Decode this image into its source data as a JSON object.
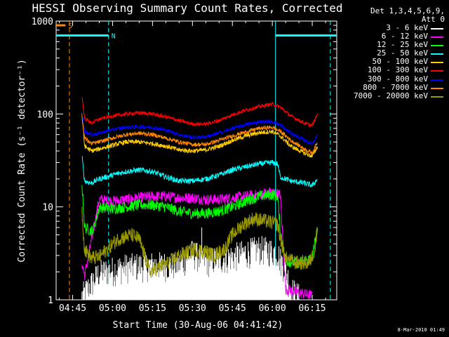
{
  "chart_data": {
    "type": "line",
    "title": "HESSI Observing Summary Count Rates, Corrected",
    "xlabel": "Start Time (30-Aug-06 04:41:42)",
    "ylabel": "Corrected Count Rate (s⁻¹ detector⁻¹)",
    "yscale": "log",
    "ylim": [
      1,
      1000
    ],
    "xlim_minutes": [
      -6.2,
      99.2
    ],
    "xticks": [
      {
        "label": "04:45",
        "min": 0
      },
      {
        "label": "05:00",
        "min": 15
      },
      {
        "label": "05:15",
        "min": 30
      },
      {
        "label": "05:30",
        "min": 45
      },
      {
        "label": "05:45",
        "min": 60
      },
      {
        "label": "06:00",
        "min": 75
      },
      {
        "label": "06:15",
        "min": 90
      }
    ],
    "yticks": [
      {
        "label": "1",
        "value": 1
      },
      {
        "label": "10",
        "value": 10
      },
      {
        "label": "100",
        "value": 100
      },
      {
        "label": "1000",
        "value": 1000
      }
    ],
    "legend_header": [
      "Det 1,3,4,5,6,9,",
      "Att 0"
    ],
    "legend_position": "right",
    "series": [
      {
        "name": "3 - 6 keV",
        "color": "#ffffff",
        "points": [
          [
            3.5,
            1
          ],
          [
            10,
            1.8
          ],
          [
            20,
            2.1
          ],
          [
            30,
            2.2
          ],
          [
            40,
            2.2
          ],
          [
            45,
            3.0
          ],
          [
            50,
            2.4
          ],
          [
            60,
            2.7
          ],
          [
            70,
            3.3
          ],
          [
            77,
            3.0
          ],
          [
            78,
            2.5
          ],
          [
            80,
            2.0
          ],
          [
            82,
            1.2
          ],
          [
            85,
            1.0
          ]
        ]
      },
      {
        "name": "6 - 12 keV",
        "color": "#ff00ff",
        "points": [
          [
            3.5,
            2.5
          ],
          [
            4.5,
            1.8
          ],
          [
            10,
            12
          ],
          [
            15,
            11.5
          ],
          [
            20,
            12
          ],
          [
            25,
            12.5
          ],
          [
            30,
            13
          ],
          [
            35,
            13
          ],
          [
            40,
            12.5
          ],
          [
            45,
            12.5
          ],
          [
            50,
            12
          ],
          [
            55,
            12
          ],
          [
            60,
            12.5
          ],
          [
            65,
            13
          ],
          [
            70,
            13.5
          ],
          [
            75,
            14.5
          ],
          [
            78,
            13.5
          ],
          [
            80,
            1.3
          ],
          [
            90,
            1.1
          ]
        ]
      },
      {
        "name": "12 - 25 keV",
        "color": "#00ff00",
        "points": [
          [
            3.5,
            18
          ],
          [
            4.5,
            6
          ],
          [
            7,
            5.5
          ],
          [
            8,
            6
          ],
          [
            10,
            10
          ],
          [
            15,
            9.5
          ],
          [
            20,
            10
          ],
          [
            25,
            10.5
          ],
          [
            30,
            10.5
          ],
          [
            35,
            10
          ],
          [
            40,
            9
          ],
          [
            45,
            8.5
          ],
          [
            50,
            8.5
          ],
          [
            55,
            9
          ],
          [
            60,
            10
          ],
          [
            65,
            11.5
          ],
          [
            70,
            13
          ],
          [
            75,
            13.5
          ],
          [
            77,
            13
          ],
          [
            78,
            5.5
          ],
          [
            80,
            2.6
          ],
          [
            85,
            2.5
          ],
          [
            90,
            2.8
          ],
          [
            92,
            6
          ]
        ]
      },
      {
        "name": "25 - 50 keV",
        "color": "#00ffff",
        "points": [
          [
            3.5,
            35
          ],
          [
            4.5,
            19
          ],
          [
            7,
            18
          ],
          [
            10,
            20
          ],
          [
            15,
            22
          ],
          [
            20,
            24
          ],
          [
            25,
            25
          ],
          [
            30,
            24
          ],
          [
            35,
            21
          ],
          [
            40,
            19
          ],
          [
            45,
            19
          ],
          [
            50,
            20
          ],
          [
            55,
            22
          ],
          [
            60,
            25
          ],
          [
            65,
            27
          ],
          [
            70,
            29
          ],
          [
            75,
            30
          ],
          [
            77,
            29
          ],
          [
            78,
            21
          ],
          [
            82,
            19
          ],
          [
            87,
            18
          ],
          [
            90,
            17
          ],
          [
            92,
            20
          ]
        ]
      },
      {
        "name": "50 - 100 keV",
        "color": "#ffcc00",
        "points": [
          [
            3.5,
            100
          ],
          [
            4.5,
            45
          ],
          [
            7,
            40
          ],
          [
            10,
            42
          ],
          [
            15,
            46
          ],
          [
            20,
            50
          ],
          [
            25,
            50
          ],
          [
            30,
            48
          ],
          [
            35,
            45
          ],
          [
            40,
            41
          ],
          [
            45,
            40
          ],
          [
            50,
            41
          ],
          [
            55,
            45
          ],
          [
            60,
            52
          ],
          [
            65,
            58
          ],
          [
            70,
            63
          ],
          [
            75,
            65
          ],
          [
            78,
            58
          ],
          [
            82,
            45
          ],
          [
            87,
            38
          ],
          [
            90,
            35
          ],
          [
            92,
            45
          ]
        ]
      },
      {
        "name": "100 - 300 keV",
        "color": "#ff0000",
        "points": [
          [
            3.5,
            155
          ],
          [
            4.5,
            90
          ],
          [
            7,
            80
          ],
          [
            10,
            88
          ],
          [
            15,
            95
          ],
          [
            20,
            100
          ],
          [
            25,
            103
          ],
          [
            30,
            100
          ],
          [
            35,
            93
          ],
          [
            40,
            85
          ],
          [
            45,
            78
          ],
          [
            50,
            78
          ],
          [
            55,
            85
          ],
          [
            60,
            98
          ],
          [
            65,
            110
          ],
          [
            70,
            120
          ],
          [
            75,
            128
          ],
          [
            78,
            118
          ],
          [
            82,
            95
          ],
          [
            87,
            80
          ],
          [
            90,
            75
          ],
          [
            92,
            100
          ]
        ]
      },
      {
        "name": "300 - 800 keV",
        "color": "#0000ff",
        "points": [
          [
            3.5,
            110
          ],
          [
            4.5,
            65
          ],
          [
            7,
            60
          ],
          [
            10,
            62
          ],
          [
            15,
            68
          ],
          [
            20,
            72
          ],
          [
            25,
            73
          ],
          [
            30,
            72
          ],
          [
            35,
            67
          ],
          [
            40,
            60
          ],
          [
            45,
            56
          ],
          [
            50,
            57
          ],
          [
            55,
            62
          ],
          [
            60,
            70
          ],
          [
            65,
            77
          ],
          [
            70,
            82
          ],
          [
            75,
            83
          ],
          [
            78,
            76
          ],
          [
            82,
            62
          ],
          [
            87,
            52
          ],
          [
            90,
            48
          ],
          [
            92,
            60
          ]
        ]
      },
      {
        "name": "800 - 7000 keV",
        "color": "#ff8800",
        "points": [
          [
            3.5,
            90
          ],
          [
            4.5,
            55
          ],
          [
            7,
            48
          ],
          [
            10,
            50
          ],
          [
            15,
            55
          ],
          [
            20,
            60
          ],
          [
            25,
            62
          ],
          [
            30,
            60
          ],
          [
            35,
            55
          ],
          [
            40,
            50
          ],
          [
            45,
            47
          ],
          [
            50,
            47
          ],
          [
            55,
            52
          ],
          [
            60,
            58
          ],
          [
            65,
            64
          ],
          [
            70,
            70
          ],
          [
            75,
            72
          ],
          [
            78,
            65
          ],
          [
            82,
            52
          ],
          [
            87,
            42
          ],
          [
            90,
            38
          ],
          [
            92,
            50
          ]
        ]
      },
      {
        "name": "7000 - 20000 keV",
        "color": "#999900",
        "points": [
          [
            3.5,
            9
          ],
          [
            4.5,
            3.5
          ],
          [
            7,
            2.8
          ],
          [
            10,
            2.9
          ],
          [
            13,
            3.5
          ],
          [
            17,
            4.5
          ],
          [
            22,
            5.0
          ],
          [
            25,
            4.5
          ],
          [
            27,
            3.0
          ],
          [
            29,
            2.0
          ],
          [
            32,
            2.2
          ],
          [
            36,
            2.5
          ],
          [
            40,
            3.0
          ],
          [
            46,
            3.5
          ],
          [
            50,
            3.3
          ],
          [
            53,
            3.0
          ],
          [
            57,
            3.5
          ],
          [
            60,
            5.0
          ],
          [
            64,
            6.5
          ],
          [
            68,
            7.5
          ],
          [
            73,
            7.0
          ],
          [
            77,
            6.5
          ],
          [
            78,
            4.5
          ],
          [
            80,
            2.8
          ],
          [
            84,
            2.5
          ],
          [
            89,
            2.5
          ],
          [
            91,
            3.5
          ],
          [
            92,
            6.0
          ]
        ]
      }
    ],
    "annotations": [
      {
        "text": "S",
        "color": "#ff8800",
        "x_min": -6.2,
        "x_end_min": -2.7,
        "y": 900
      },
      {
        "text": "N",
        "color": "#00ffff",
        "x_min": -6.2,
        "x_end_min": 13.5,
        "y": 700
      },
      {
        "text": "",
        "color": "#00ffff",
        "x_min": 76.2,
        "x_end_min": 99.2,
        "y": 700
      }
    ],
    "vlines": [
      {
        "min": -1.2,
        "color": "#ff8800",
        "style": "dashed"
      },
      {
        "min": 13.5,
        "color": "#00ffff",
        "style": "dashed"
      },
      {
        "min": 76.2,
        "color": "#00ffff",
        "style": "solid"
      },
      {
        "min": 96.8,
        "color": "#00ffff",
        "style": "dashed"
      }
    ]
  },
  "stamp": "8-Mar-2010 01:49"
}
